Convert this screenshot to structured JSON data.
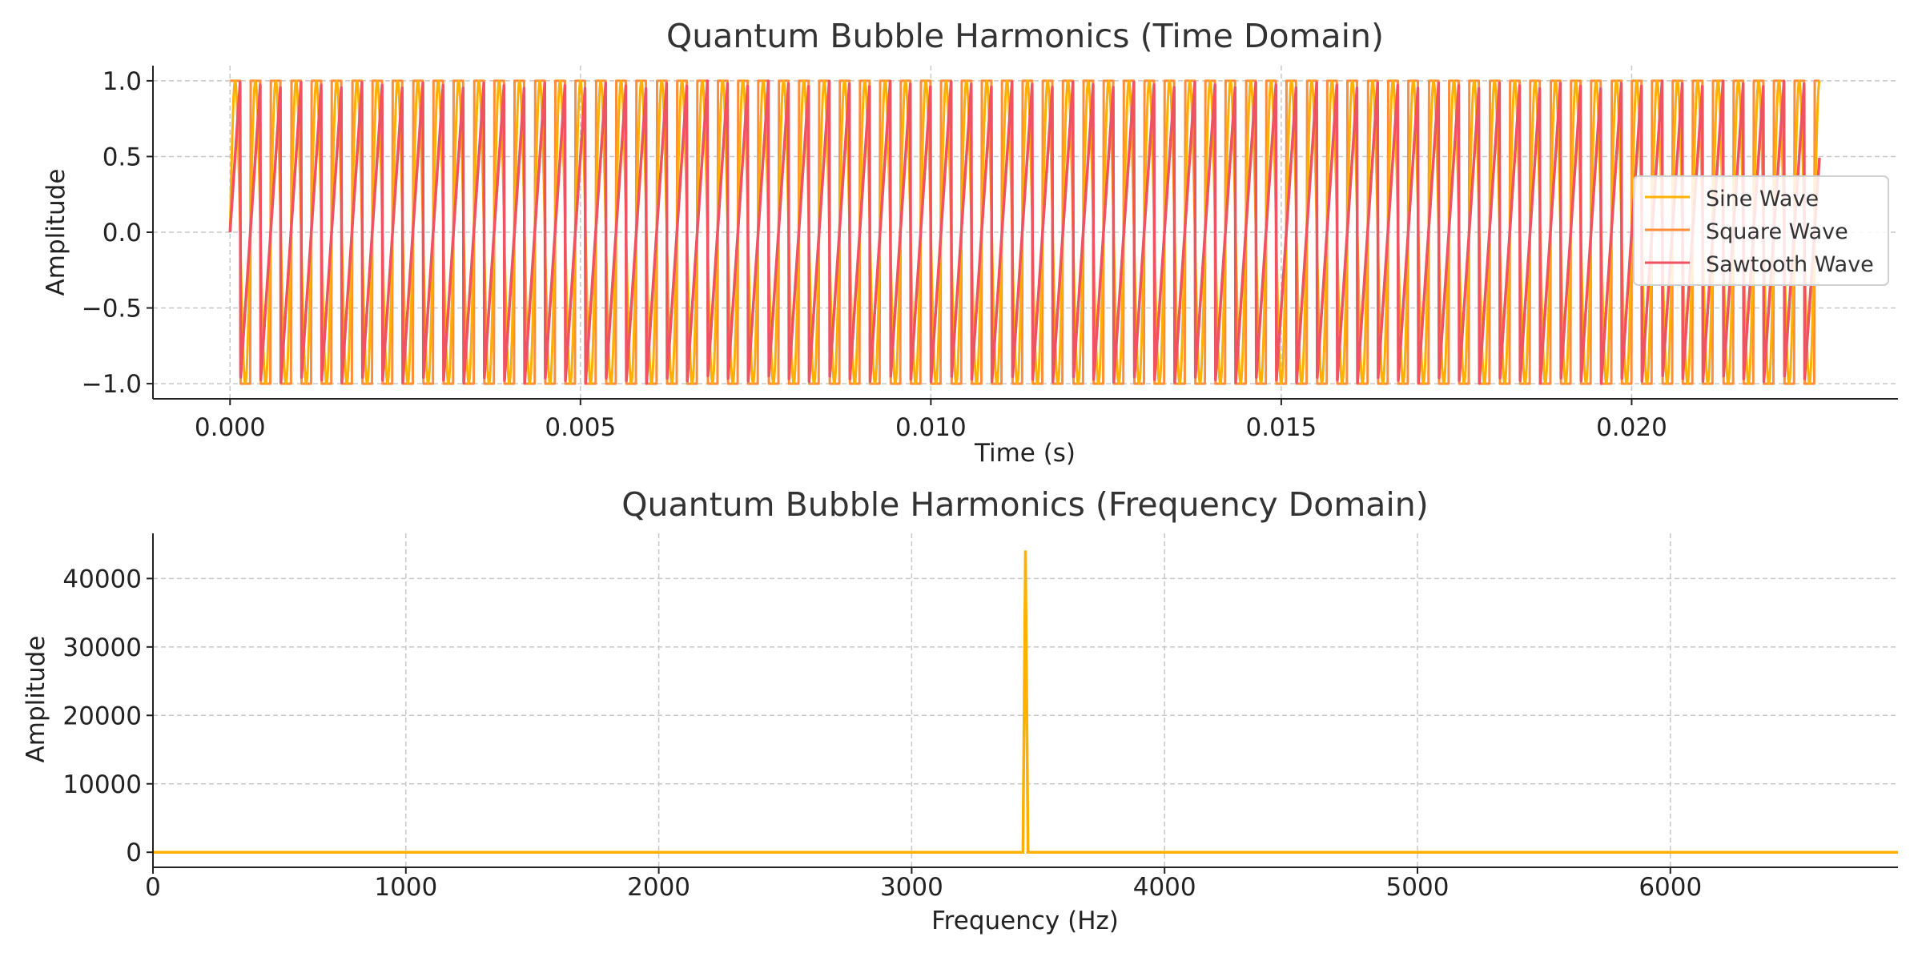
{
  "chart_data": [
    {
      "type": "line",
      "title": "Quantum Bubble Harmonics (Time Domain)",
      "xlabel": "Time (s)",
      "ylabel": "Amplitude",
      "xlim": [
        -0.0011,
        0.0238
      ],
      "ylim": [
        -1.1,
        1.1
      ],
      "x_ticks": [
        0.0,
        0.005,
        0.01,
        0.015,
        0.02
      ],
      "x_tick_labels": [
        "0.000",
        "0.005",
        "0.010",
        "0.015",
        "0.020"
      ],
      "y_ticks": [
        1.0,
        0.5,
        0.0,
        -0.5,
        -1.0
      ],
      "y_tick_labels": [
        "1.0",
        "0.5",
        "0.0",
        "−0.5",
        "−1.0"
      ],
      "grid": true,
      "legend_position": "right",
      "frequency_hz": 3450,
      "duration_s": 0.02268,
      "series": [
        {
          "name": "Sine Wave",
          "waveform": "sine",
          "amplitude": 1.0,
          "color": "#FFB000"
        },
        {
          "name": "Square Wave",
          "waveform": "square",
          "amplitude": 1.0,
          "color": "#FE8E3C"
        },
        {
          "name": "Sawtooth Wave",
          "waveform": "sawtooth",
          "amplitude": 1.0,
          "color": "#EF5261"
        }
      ]
    },
    {
      "type": "line",
      "title": "Quantum Bubble Harmonics (Frequency Domain)",
      "xlabel": "Frequency (Hz)",
      "ylabel": "Amplitude",
      "xlim": [
        0,
        6900
      ],
      "ylim": [
        -2200,
        46600
      ],
      "x_ticks": [
        0,
        1000,
        2000,
        3000,
        4000,
        5000,
        6000
      ],
      "x_tick_labels": [
        "0",
        "1000",
        "2000",
        "3000",
        "4000",
        "5000",
        "6000"
      ],
      "y_ticks": [
        40000,
        30000,
        20000,
        10000,
        0
      ],
      "y_tick_labels": [
        "40000",
        "30000",
        "20000",
        "10000",
        "0"
      ],
      "grid": true,
      "series": [
        {
          "name": "",
          "color": "#FFB000",
          "x": [
            0,
            3440,
            3450,
            3460,
            6900
          ],
          "y": [
            0,
            0,
            44100,
            0,
            0
          ]
        }
      ]
    }
  ]
}
